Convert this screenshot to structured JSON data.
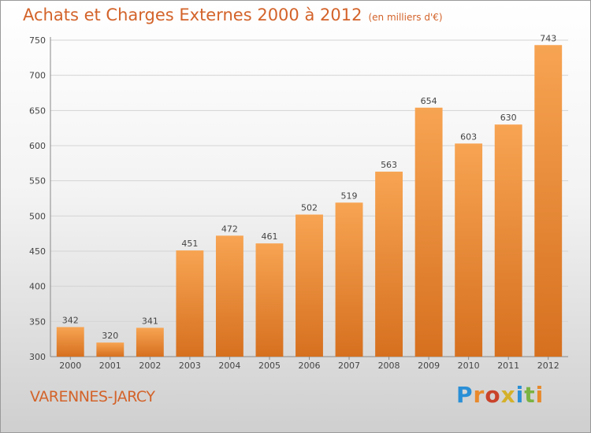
{
  "header": {
    "title": "Achats et Charges Externes 2000 à 2012",
    "unit": "(en milliers d'€)"
  },
  "footer": {
    "place": "VARENNES-JARCY",
    "brand": "Proxiti"
  },
  "colors": {
    "accent": "#d3632a",
    "bar_top": "#f7a452",
    "bar_bottom": "#d6701f",
    "grid": "#d4d4d4"
  },
  "chart_data": {
    "type": "bar",
    "categories": [
      "2000",
      "2001",
      "2002",
      "2003",
      "2004",
      "2005",
      "2006",
      "2007",
      "2008",
      "2009",
      "2010",
      "2011",
      "2012"
    ],
    "values": [
      342,
      320,
      341,
      451,
      472,
      461,
      502,
      519,
      563,
      654,
      603,
      630,
      743
    ],
    "title": "Achats et Charges Externes 2000 à 2012",
    "xlabel": "",
    "ylabel": "",
    "ylim": [
      300,
      750
    ],
    "yticks": [
      300,
      350,
      400,
      450,
      500,
      550,
      600,
      650,
      700,
      750
    ],
    "grid": true
  }
}
